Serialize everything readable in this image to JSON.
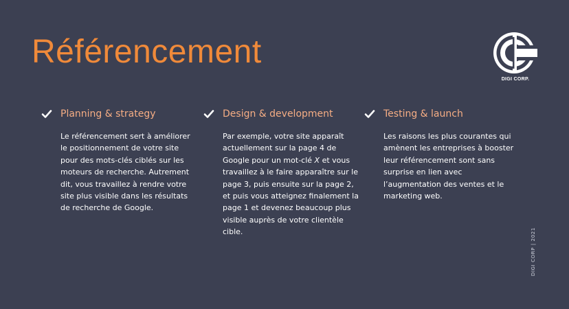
{
  "title": "Référencement",
  "logo": {
    "text": "DIGI CORP."
  },
  "columns": [
    {
      "icon": "checkmark-icon",
      "heading": "Planning & strategy",
      "body": "Le référencement sert à améliorer le positionnement de votre site pour des mots-clés ciblés sur les moteurs de recherche. Autrement dit, vous travaillez à rendre votre site plus visible dans les résultats de recherche de Google."
    },
    {
      "icon": "checkmark-icon",
      "heading": "Design & development",
      "body_before": "Par exemple, votre site apparaît actuellement sur la page 4 de Google pour un mot-clé ",
      "body_italic": "X",
      "body_after": " et vous travaillez à le faire apparaître sur le page 3, puis ensuite sur la page 2, et puis vous atteignez finalement la page 1 et devenez beaucoup plus visible auprès de votre clientèle cible."
    },
    {
      "icon": "checkmark-icon",
      "heading": "Testing & launch",
      "body": "Les raisons les plus courantes qui amènent les entreprises à booster leur référencement sont sans surprise en lien avec l’augmentation des ventes et le marketing web."
    }
  ],
  "side_text": "DIGI CORP | 2021",
  "colors": {
    "background": "#3c4052",
    "title": "#f08a3a",
    "heading": "#f5ad84",
    "body": "#ffffff"
  }
}
